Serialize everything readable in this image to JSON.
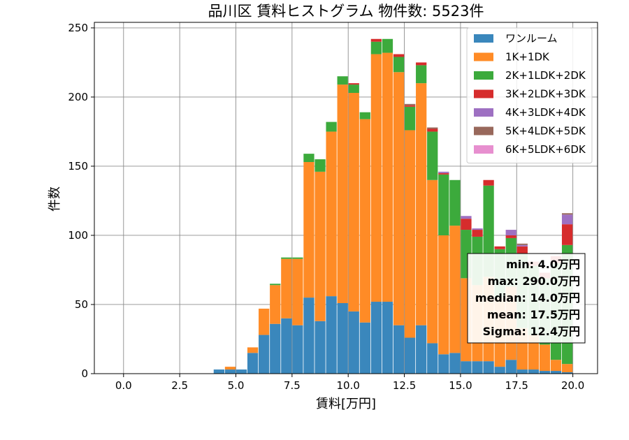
{
  "chart_data": {
    "type": "bar",
    "stacked": true,
    "title": "品川区 賃料ヒストグラム 物件数: 5523件",
    "xlabel": "賃料[万円]",
    "ylabel": "件数",
    "xlim": [
      -1.3,
      21.1
    ],
    "ylim": [
      0,
      254
    ],
    "grid": true,
    "legend_position": "top-right",
    "xticks": [
      "0.0",
      "2.5",
      "5.0",
      "7.5",
      "10.0",
      "12.5",
      "15.0",
      "17.5",
      "20.0"
    ],
    "yticks": [
      "0",
      "50",
      "100",
      "150",
      "200",
      "250"
    ],
    "bin_width": 0.5,
    "x": [
      4.0,
      4.5,
      5.0,
      5.5,
      6.0,
      6.5,
      7.0,
      7.5,
      8.0,
      8.5,
      9.0,
      9.5,
      10.0,
      10.5,
      11.0,
      11.5,
      12.0,
      12.5,
      13.0,
      13.5,
      14.0,
      14.5,
      15.0,
      15.5,
      16.0,
      16.5,
      17.0,
      17.5,
      18.0,
      18.5,
      19.0,
      19.5
    ],
    "series": [
      {
        "name": "ワンルーム",
        "color": "#3a87bc",
        "values": [
          3,
          3,
          3,
          15,
          28,
          36,
          40,
          35,
          55,
          38,
          56,
          51,
          45,
          37,
          52,
          52,
          35,
          26,
          35,
          22,
          14,
          15,
          9,
          9,
          9,
          5,
          10,
          3,
          3,
          2,
          2,
          1
        ]
      },
      {
        "name": "1K+1DK",
        "color": "#ff8b26",
        "values": [
          0,
          2,
          0,
          4,
          19,
          28,
          43,
          48,
          98,
          108,
          119,
          158,
          158,
          147,
          179,
          180,
          183,
          150,
          175,
          118,
          86,
          92,
          60,
          55,
          61,
          50,
          53,
          30,
          25,
          19,
          8,
          6
        ]
      },
      {
        "name": "2K+1LDK+2DK",
        "color": "#3caa3c",
        "values": [
          0,
          0,
          0,
          0,
          0,
          1,
          1,
          1,
          6,
          9,
          7,
          6,
          6,
          5,
          9,
          10,
          11,
          17,
          13,
          35,
          44,
          33,
          35,
          35,
          66,
          35,
          35,
          54,
          50,
          48,
          70,
          86
        ]
      },
      {
        "name": "3K+2LDK+3DK",
        "color": "#d62c2c",
        "values": [
          0,
          0,
          0,
          0,
          0,
          0,
          0,
          0,
          0,
          0,
          0,
          0,
          1,
          0,
          2,
          0,
          2,
          1,
          2,
          2,
          1,
          0,
          8,
          5,
          4,
          2,
          2,
          5,
          3,
          4,
          5,
          15
        ]
      },
      {
        "name": "4K+3LDK+4DK",
        "color": "#9e70c2",
        "values": [
          0,
          0,
          0,
          0,
          0,
          0,
          0,
          0,
          0,
          0,
          0,
          0,
          0,
          0,
          0,
          0,
          0,
          0,
          0,
          0,
          1,
          0,
          2,
          1,
          0,
          0,
          4,
          1,
          0,
          0,
          0,
          7
        ]
      },
      {
        "name": "5K+4LDK+5DK",
        "color": "#98685b",
        "values": [
          0,
          0,
          0,
          0,
          0,
          0,
          0,
          0,
          0,
          0,
          0,
          0,
          0,
          0,
          0,
          0,
          0,
          1,
          0,
          1,
          0,
          0,
          0,
          0,
          0,
          0,
          0,
          1,
          0,
          0,
          0,
          1
        ]
      },
      {
        "name": "6K+5LDK+6DK",
        "color": "#e78fcf",
        "values": [
          0,
          0,
          0,
          0,
          0,
          0,
          0,
          0,
          0,
          0,
          0,
          0,
          0,
          0,
          0,
          0,
          0,
          0,
          0,
          0,
          0,
          0,
          0,
          0,
          0,
          0,
          0,
          0,
          0,
          0,
          0,
          0
        ]
      }
    ],
    "stats_box": [
      "min: 4.0万円",
      "max: 290.0万円",
      "median: 14.0万円",
      "mean: 17.5万円",
      "Sigma: 12.4万円"
    ]
  }
}
